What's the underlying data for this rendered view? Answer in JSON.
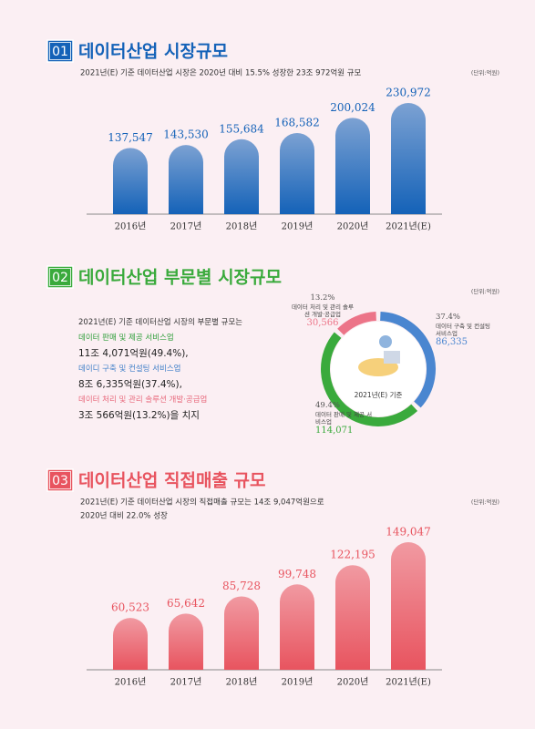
{
  "chart_data": [
    {
      "type": "bar",
      "badge": "01",
      "title": "데이터산업 시장규모",
      "subtitle": [
        "2021년(E) 기준 데이터산업 시장은 2020년 대비 15.5% 성장한 23조 972억원 규모"
      ],
      "unit": "(단위:억원)",
      "categories": [
        "2016년",
        "2017년",
        "2018년",
        "2019년",
        "2020년",
        "2021년(E)"
      ],
      "values": [
        137547,
        143530,
        155684,
        168582,
        200024,
        230972
      ],
      "value_labels": [
        "137,547",
        "143,530",
        "155,684",
        "168,582",
        "200,024",
        "230,972"
      ],
      "color": "#1462b8"
    },
    {
      "type": "pie",
      "badge": "02",
      "title": "데이터산업 부문별 시장규모",
      "unit": "(단위:억원)",
      "description": {
        "intro": "2021년(E) 기준 데이터산업 시장의 부문별 규모는",
        "items": [
          {
            "name": "데이터 판매 및 제공 서비스업",
            "amount": "11조 4,071억원(49.4%),"
          },
          {
            "name": "데이디 구축 및 컨설팅 서비스업",
            "amount": "8조 6,335억원(37.4%),"
          },
          {
            "name": "데이터 처리 및 관리 솔루션 개발·공급업",
            "amount": "3조 566억원(13.2%)을 치지"
          }
        ]
      },
      "categories": [
        "데이터 구축 및 컨설팅 서비스업",
        "데이터 판매 및 제공 서비스업",
        "데이터 처리 및 관리 솔루션 개발·공급업"
      ],
      "values": [
        86335,
        114071,
        30566
      ],
      "value_labels": [
        "86,335",
        "114,071",
        "30,566"
      ],
      "percents": [
        37.4,
        49.4,
        13.2
      ],
      "percent_labels": [
        "37.4%",
        "49.4%",
        "13.2%"
      ],
      "colors": [
        "#4a86d0",
        "#3aaa3c",
        "#ec7488"
      ],
      "center_label": "2021년(E) 기준"
    },
    {
      "type": "bar",
      "badge": "03",
      "title": "데이터산업 직접매출 규모",
      "subtitle": [
        "2021년(E) 기준 데이터산업 시장의 직접매출 규모는 14조 9,047억원으로",
        "2020년 대비 22.0% 성장"
      ],
      "unit": "(단위:억원)",
      "categories": [
        "2016년",
        "2017년",
        "2018년",
        "2019년",
        "2020년",
        "2021년(E)"
      ],
      "values": [
        60523,
        65642,
        85728,
        99748,
        122195,
        149047
      ],
      "value_labels": [
        "60,523",
        "65,642",
        "85,728",
        "99,748",
        "122,195",
        "149,047"
      ],
      "color": "#e8545f"
    }
  ]
}
